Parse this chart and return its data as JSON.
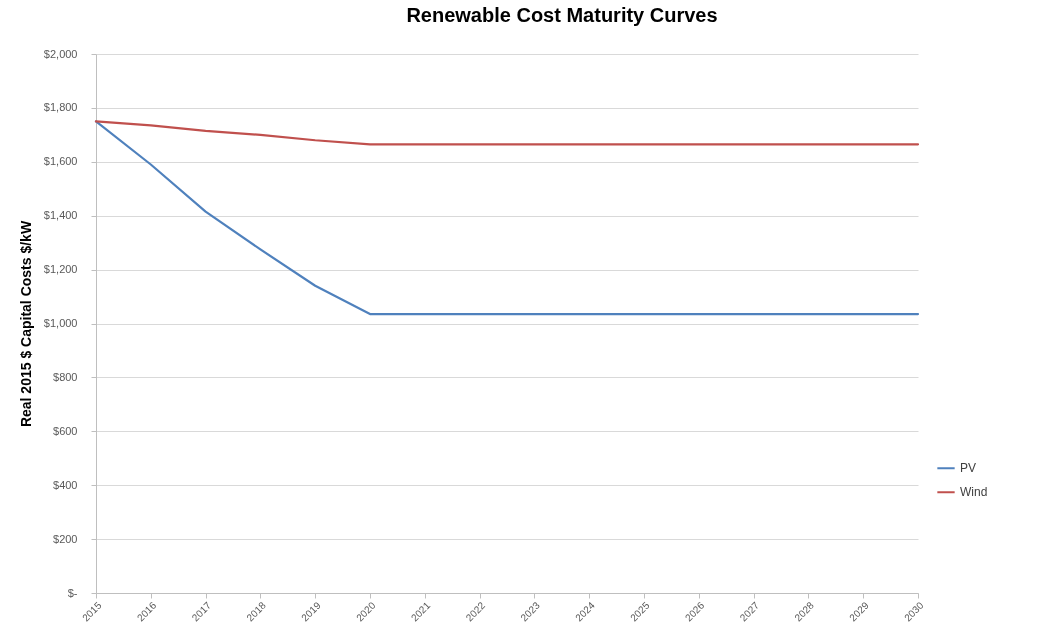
{
  "chart_data": {
    "type": "line",
    "title": "Renewable Cost Maturity Curves",
    "ylabel": "Real 2015 $ Capital Costs $/kW",
    "categories": [
      "2015",
      "2016",
      "2017",
      "2018",
      "2019",
      "2020",
      "2021",
      "2022",
      "2023",
      "2024",
      "2025",
      "2026",
      "2027",
      "2028",
      "2029",
      "2030"
    ],
    "series": [
      {
        "name": "PV",
        "color": "#4f81bd",
        "values": [
          1750,
          1590,
          1415,
          1275,
          1140,
          1035,
          1035,
          1035,
          1035,
          1035,
          1035,
          1035,
          1035,
          1035,
          1035,
          1035
        ]
      },
      {
        "name": "Wind",
        "color": "#c0504d",
        "values": [
          1750,
          1735,
          1715,
          1700,
          1680,
          1665,
          1665,
          1665,
          1665,
          1665,
          1665,
          1665,
          1665,
          1665,
          1665,
          1665
        ]
      }
    ],
    "ylim": [
      0,
      2000
    ],
    "yticks": [
      {
        "value": 0,
        "label": "$-"
      },
      {
        "value": 200,
        "label": "$200"
      },
      {
        "value": 400,
        "label": "$400"
      },
      {
        "value": 600,
        "label": "$600"
      },
      {
        "value": 800,
        "label": "$800"
      },
      {
        "value": 1000,
        "label": "$1,000"
      },
      {
        "value": 1200,
        "label": "$1,200"
      },
      {
        "value": 1400,
        "label": "$1,400"
      },
      {
        "value": 1600,
        "label": "$1,600"
      },
      {
        "value": 1800,
        "label": "$1,800"
      },
      {
        "value": 2000,
        "label": "$2,000"
      }
    ],
    "grid": "y",
    "legend": "right",
    "line_style": "solid"
  }
}
